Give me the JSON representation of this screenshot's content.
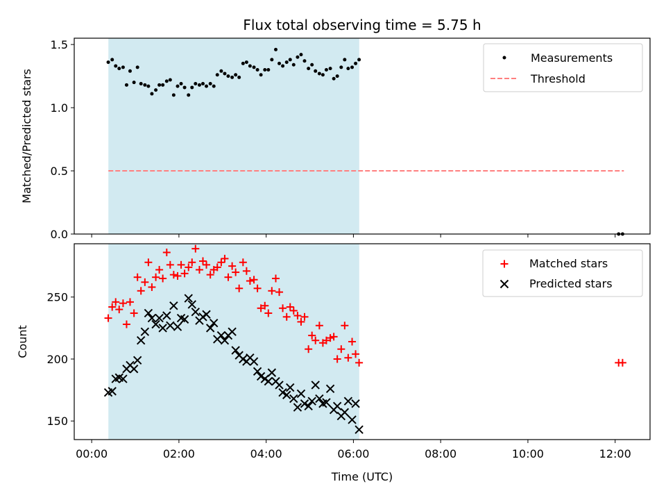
{
  "chart_data": {
    "title": "Flux total observing time = 5.75 h",
    "xlabel": "Time (UTC)",
    "x_unit": "hours UTC",
    "xlim": [
      -0.4,
      12.8
    ],
    "xticks": [
      0,
      2,
      4,
      6,
      8,
      10,
      12
    ],
    "xtick_labels": [
      "00:00",
      "02:00",
      "04:00",
      "06:00",
      "08:00",
      "10:00",
      "12:00"
    ],
    "observing_window": [
      0.383,
      6.133
    ],
    "colors": {
      "window": "#add8e6",
      "measurements": "#000000",
      "threshold": "#ff7f7f",
      "matched": "#ff0000",
      "predicted": "#000000"
    },
    "panels": [
      {
        "type": "scatter",
        "ylabel": "Matched/Predicted stars",
        "ylim": [
          0,
          1.55
        ],
        "yticks": [
          0,
          0.5,
          1.0,
          1.5
        ],
        "ytick_labels": [
          "0.0",
          "0.5",
          "1.0",
          "1.5"
        ],
        "legend": "top-right",
        "threshold": {
          "name": "Threshold",
          "value": 0.5,
          "x": [
            0.383,
            12.2
          ]
        },
        "measurements": {
          "name": "Measurements",
          "x": [
            0.38,
            0.47,
            0.55,
            0.63,
            0.72,
            0.8,
            0.88,
            0.97,
            1.05,
            1.13,
            1.22,
            1.3,
            1.38,
            1.47,
            1.55,
            1.63,
            1.72,
            1.8,
            1.88,
            1.97,
            2.05,
            2.13,
            2.22,
            2.3,
            2.38,
            2.47,
            2.55,
            2.63,
            2.72,
            2.8,
            2.88,
            2.97,
            3.05,
            3.13,
            3.22,
            3.3,
            3.38,
            3.47,
            3.55,
            3.63,
            3.72,
            3.8,
            3.88,
            3.97,
            4.05,
            4.13,
            4.22,
            4.3,
            4.38,
            4.47,
            4.55,
            4.63,
            4.72,
            4.8,
            4.88,
            4.97,
            5.05,
            5.13,
            5.22,
            5.3,
            5.38,
            5.47,
            5.55,
            5.63,
            5.72,
            5.8,
            5.88,
            5.97,
            6.05,
            6.13,
            12.08,
            12.17
          ],
          "y": [
            1.36,
            1.38,
            1.33,
            1.31,
            1.32,
            1.18,
            1.29,
            1.2,
            1.32,
            1.19,
            1.18,
            1.17,
            1.11,
            1.14,
            1.18,
            1.18,
            1.21,
            1.22,
            1.1,
            1.17,
            1.19,
            1.16,
            1.1,
            1.16,
            1.19,
            1.18,
            1.19,
            1.17,
            1.19,
            1.17,
            1.26,
            1.29,
            1.27,
            1.25,
            1.24,
            1.26,
            1.24,
            1.35,
            1.36,
            1.33,
            1.32,
            1.3,
            1.26,
            1.3,
            1.3,
            1.38,
            1.46,
            1.35,
            1.33,
            1.36,
            1.38,
            1.34,
            1.4,
            1.42,
            1.37,
            1.31,
            1.34,
            1.29,
            1.27,
            1.26,
            1.3,
            1.31,
            1.23,
            1.25,
            1.32,
            1.38,
            1.31,
            1.32,
            1.35,
            1.38,
            0.0,
            0.0
          ]
        }
      },
      {
        "type": "scatter",
        "ylabel": "Count",
        "ylim": [
          135,
          293
        ],
        "yticks": [
          150,
          200,
          250
        ],
        "ytick_labels": [
          "150",
          "200",
          "250"
        ],
        "legend": "top-right",
        "series": [
          {
            "name": "Matched stars",
            "marker": "plus",
            "x": [
              0.38,
              0.47,
              0.55,
              0.63,
              0.72,
              0.8,
              0.88,
              0.97,
              1.05,
              1.13,
              1.22,
              1.3,
              1.38,
              1.47,
              1.55,
              1.63,
              1.72,
              1.8,
              1.88,
              1.97,
              2.05,
              2.13,
              2.22,
              2.3,
              2.38,
              2.47,
              2.55,
              2.63,
              2.72,
              2.8,
              2.88,
              2.97,
              3.05,
              3.13,
              3.22,
              3.3,
              3.38,
              3.47,
              3.55,
              3.63,
              3.72,
              3.8,
              3.88,
              3.97,
              4.05,
              4.13,
              4.22,
              4.3,
              4.38,
              4.47,
              4.55,
              4.63,
              4.72,
              4.8,
              4.88,
              4.97,
              5.05,
              5.13,
              5.22,
              5.3,
              5.38,
              5.47,
              5.55,
              5.63,
              5.72,
              5.8,
              5.88,
              5.97,
              6.05,
              6.13,
              12.08,
              12.17
            ],
            "y": [
              233,
              242,
              246,
              240,
              245,
              228,
              246,
              237,
              266,
              255,
              262,
              278,
              258,
              266,
              272,
              265,
              286,
              276,
              268,
              267,
              276,
              269,
              274,
              278,
              289,
              272,
              279,
              276,
              268,
              272,
              274,
              278,
              281,
              266,
              275,
              270,
              257,
              278,
              271,
              263,
              264,
              257,
              241,
              243,
              237,
              255,
              265,
              254,
              241,
              234,
              242,
              239,
              235,
              230,
              234,
              208,
              219,
              215,
              227,
              213,
              215,
              217,
              218,
              200,
              208,
              227,
              201,
              214,
              204,
              197,
              197,
              197
            ]
          },
          {
            "name": "Predicted stars",
            "marker": "x",
            "x": [
              0.38,
              0.47,
              0.55,
              0.63,
              0.72,
              0.8,
              0.88,
              0.97,
              1.05,
              1.13,
              1.22,
              1.3,
              1.38,
              1.47,
              1.55,
              1.63,
              1.72,
              1.8,
              1.88,
              1.97,
              2.05,
              2.13,
              2.22,
              2.3,
              2.38,
              2.47,
              2.55,
              2.63,
              2.72,
              2.8,
              2.88,
              2.97,
              3.05,
              3.13,
              3.22,
              3.3,
              3.38,
              3.47,
              3.55,
              3.63,
              3.72,
              3.8,
              3.88,
              3.97,
              4.05,
              4.13,
              4.22,
              4.3,
              4.38,
              4.47,
              4.55,
              4.63,
              4.72,
              4.8,
              4.88,
              4.97,
              5.05,
              5.13,
              5.22,
              5.3,
              5.38,
              5.47,
              5.55,
              5.63,
              5.72,
              5.8,
              5.88,
              5.97,
              6.05,
              6.13
            ],
            "y": [
              173,
              174,
              184,
              185,
              184,
              192,
              195,
              192,
              199,
              215,
              222,
              237,
              233,
              228,
              233,
              225,
              235,
              227,
              243,
              226,
              233,
              232,
              249,
              244,
              238,
              231,
              234,
              236,
              225,
              229,
              216,
              219,
              215,
              219,
              222,
              207,
              203,
              200,
              198,
              201,
              198,
              190,
              186,
              184,
              182,
              189,
              182,
              179,
              173,
              171,
              177,
              168,
              161,
              172,
              164,
              162,
              166,
              179,
              168,
              164,
              165,
              176,
              159,
              162,
              154,
              157,
              166,
              151,
              164,
              143
            ]
          }
        ]
      }
    ]
  }
}
